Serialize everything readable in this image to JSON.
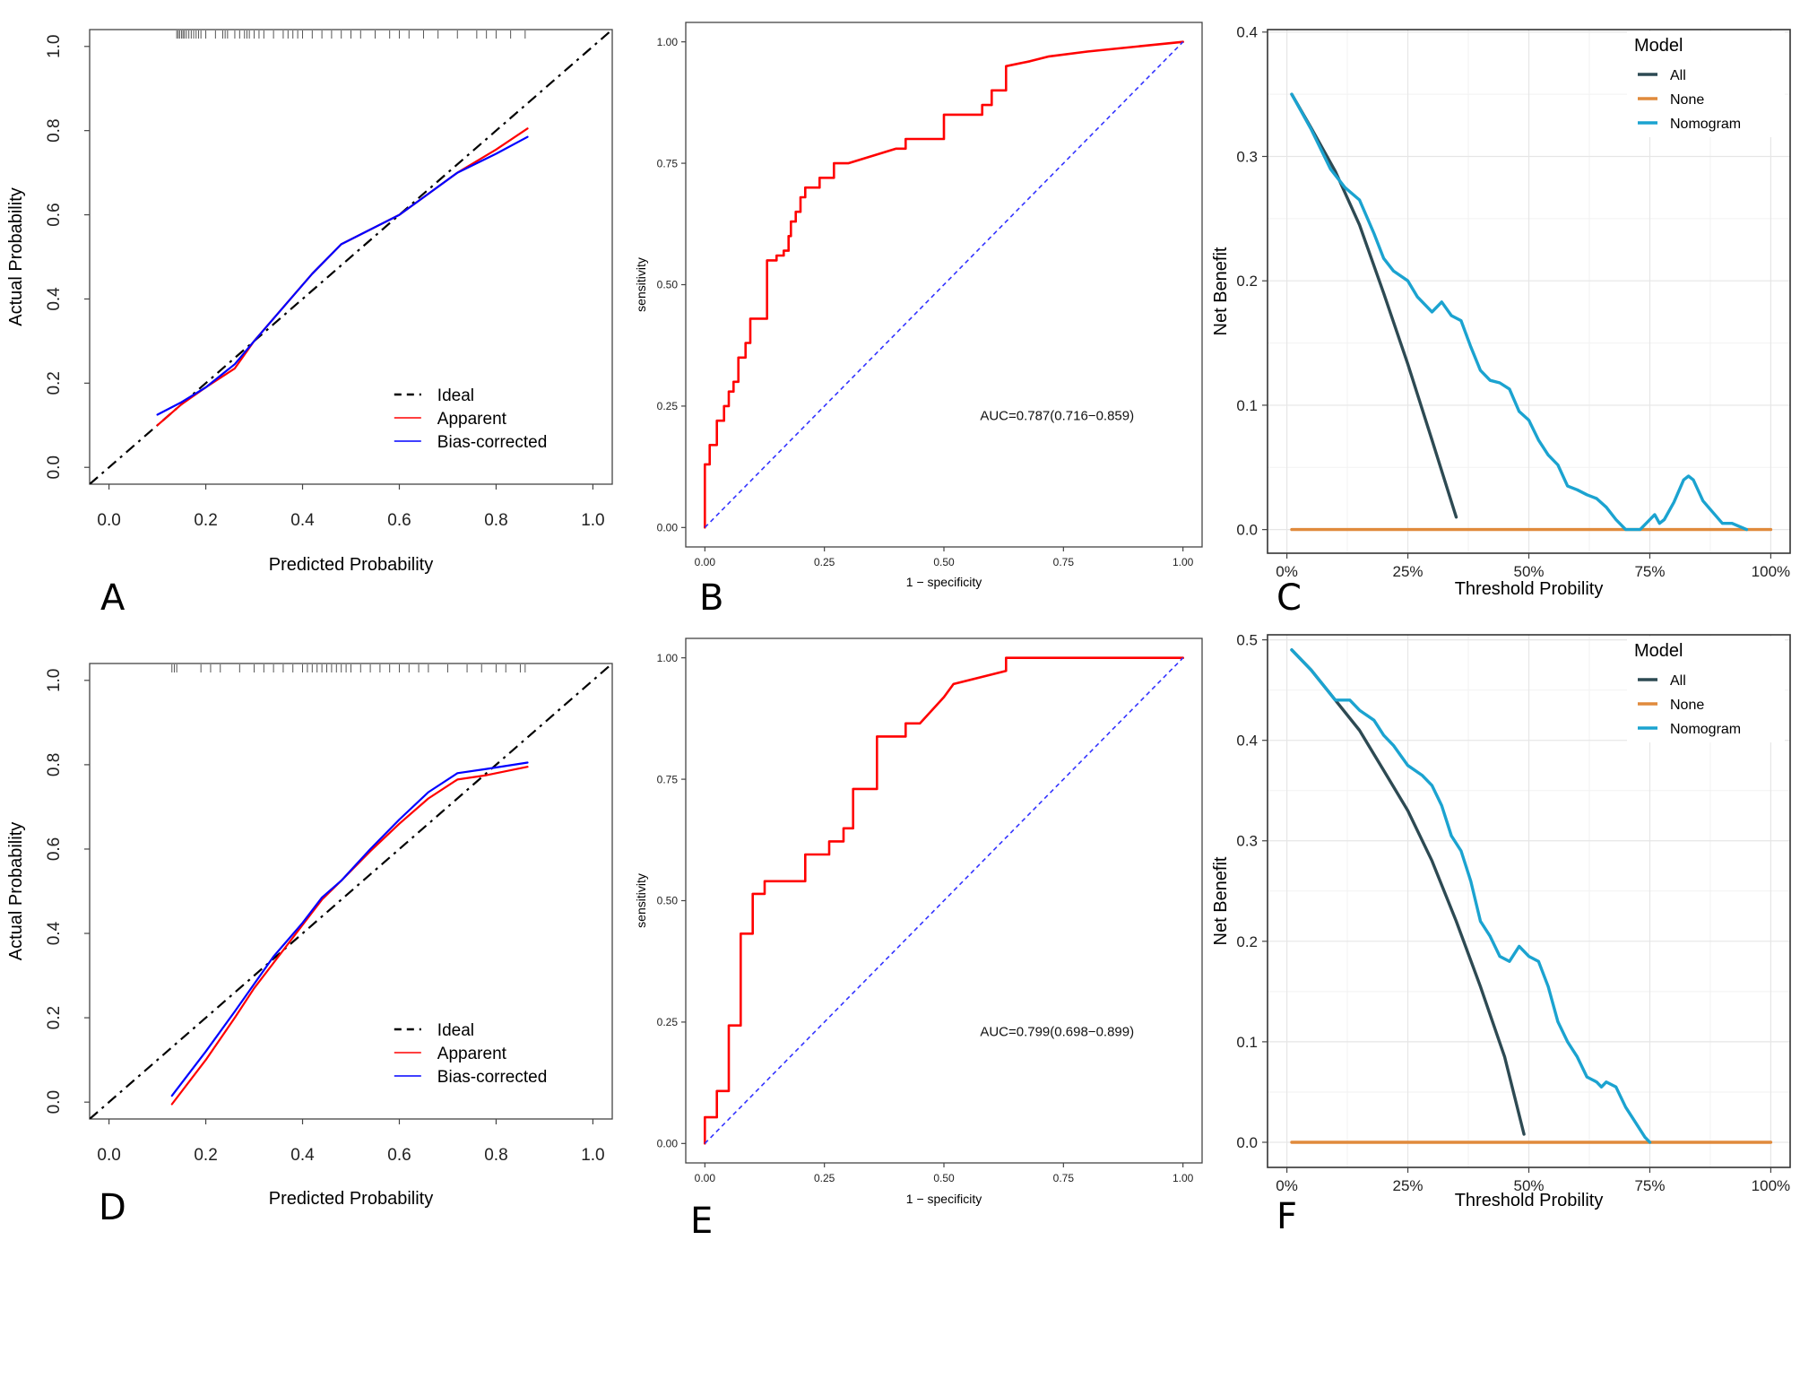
{
  "panels": [
    {
      "letter": "A",
      "chart_data": {
        "type": "line",
        "title": "",
        "xlabel": "Predicted Probability",
        "ylabel": "Actual Probability",
        "xlim": [
          -0.04,
          1.04
        ],
        "ylim": [
          -0.04,
          1.04
        ],
        "xticks": [
          "0.0",
          "0.2",
          "0.4",
          "0.6",
          "0.8",
          "1.0"
        ],
        "yticks": [
          "0.0",
          "0.2",
          "0.4",
          "0.6",
          "0.8",
          "1.0"
        ],
        "legend_position": "bottom-right",
        "series": [
          {
            "name": "Ideal",
            "color": "#000000",
            "dash": "dashed",
            "x": [
              -0.04,
              1.04
            ],
            "y": [
              -0.04,
              1.04
            ]
          },
          {
            "name": "Apparent",
            "color": "#ff0000",
            "x": [
              0.1,
              0.15,
              0.2,
              0.26,
              0.3,
              0.36,
              0.42,
              0.48,
              0.54,
              0.6,
              0.66,
              0.72,
              0.8,
              0.865
            ],
            "y": [
              0.1,
              0.15,
              0.19,
              0.235,
              0.3,
              0.38,
              0.46,
              0.53,
              0.565,
              0.6,
              0.65,
              0.7,
              0.755,
              0.805
            ]
          },
          {
            "name": "Bias-corrected",
            "color": "#0000ff",
            "x": [
              0.1,
              0.15,
              0.2,
              0.26,
              0.3,
              0.36,
              0.42,
              0.48,
              0.54,
              0.6,
              0.66,
              0.72,
              0.8,
              0.865
            ],
            "y": [
              0.125,
              0.155,
              0.19,
              0.245,
              0.3,
              0.38,
              0.46,
              0.53,
              0.565,
              0.6,
              0.65,
              0.7,
              0.745,
              0.785
            ]
          }
        ],
        "rug": {
          "y": 1.025,
          "x": [
            0.14,
            0.143,
            0.146,
            0.15,
            0.153,
            0.156,
            0.16,
            0.165,
            0.17,
            0.175,
            0.18,
            0.185,
            0.19,
            0.2,
            0.22,
            0.235,
            0.24,
            0.245,
            0.26,
            0.27,
            0.28,
            0.285,
            0.29,
            0.3,
            0.31,
            0.32,
            0.34,
            0.36,
            0.37,
            0.38,
            0.39,
            0.4,
            0.42,
            0.44,
            0.46,
            0.48,
            0.5,
            0.52,
            0.55,
            0.58,
            0.6,
            0.62,
            0.65,
            0.68,
            0.72,
            0.76,
            0.78,
            0.8,
            0.83,
            0.86
          ]
        }
      }
    },
    {
      "letter": "B",
      "chart_data": {
        "type": "line",
        "title": "",
        "xlabel": "1 − specificity",
        "ylabel": "sensitivity",
        "xlim": [
          -0.04,
          1.04
        ],
        "ylim": [
          -0.04,
          1.04
        ],
        "xticks": [
          "0.00",
          "0.25",
          "0.50",
          "0.75",
          "1.00"
        ],
        "yticks": [
          "0.00",
          "0.25",
          "0.50",
          "0.75",
          "1.00"
        ],
        "annotation": "AUC=0.787(0.716−0.859)",
        "series": [
          {
            "name": "",
            "color": "#ff0000",
            "x": [
              0.0,
              0.0,
              0.01,
              0.01,
              0.025,
              0.025,
              0.04,
              0.04,
              0.05,
              0.05,
              0.06,
              0.06,
              0.07,
              0.07,
              0.085,
              0.085,
              0.095,
              0.095,
              0.13,
              0.13,
              0.15,
              0.15,
              0.165,
              0.165,
              0.175,
              0.175,
              0.18,
              0.18,
              0.19,
              0.19,
              0.2,
              0.2,
              0.21,
              0.21,
              0.24,
              0.24,
              0.27,
              0.27,
              0.3,
              0.4,
              0.42,
              0.42,
              0.5,
              0.5,
              0.56,
              0.56,
              0.58,
              0.58,
              0.6,
              0.6,
              0.63,
              0.63,
              0.68,
              0.72,
              0.8,
              1.0
            ],
            "y": [
              0.0,
              0.13,
              0.13,
              0.17,
              0.17,
              0.22,
              0.22,
              0.25,
              0.25,
              0.28,
              0.28,
              0.3,
              0.3,
              0.35,
              0.35,
              0.38,
              0.38,
              0.43,
              0.43,
              0.55,
              0.55,
              0.56,
              0.56,
              0.57,
              0.57,
              0.6,
              0.6,
              0.63,
              0.63,
              0.65,
              0.65,
              0.68,
              0.68,
              0.7,
              0.7,
              0.72,
              0.72,
              0.75,
              0.75,
              0.78,
              0.78,
              0.8,
              0.8,
              0.85,
              0.85,
              0.85,
              0.85,
              0.87,
              0.87,
              0.9,
              0.9,
              0.95,
              0.96,
              0.97,
              0.98,
              1.0
            ]
          },
          {
            "name": "",
            "color": "#3333ff",
            "dash": "dotted",
            "x": [
              0.0,
              1.0
            ],
            "y": [
              0.0,
              1.0
            ]
          }
        ]
      }
    },
    {
      "letter": "C",
      "chart_data": {
        "type": "line",
        "title": "",
        "xlabel": "Threshold Probility",
        "ylabel": "Net Benefit",
        "xlim": [
          -0.04,
          1.04
        ],
        "ylim": [
          -0.019,
          0.402
        ],
        "xticks": [
          "0%",
          "25%",
          "50%",
          "75%",
          "100%"
        ],
        "yticks": [
          "0.0",
          "0.1",
          "0.2",
          "0.3",
          "0.4"
        ],
        "legend_title": "Model",
        "legend_position": "top-right",
        "series": [
          {
            "name": "All",
            "color": "#2d4a53",
            "x": [
              0.01,
              0.05,
              0.1,
              0.15,
              0.2,
              0.25,
              0.3,
              0.35
            ],
            "y": [
              0.35,
              0.323,
              0.288,
              0.245,
              0.19,
              0.133,
              0.072,
              0.01
            ]
          },
          {
            "name": "None",
            "color": "#e08a3c",
            "x": [
              0.01,
              1.0
            ],
            "y": [
              0.0,
              0.0
            ]
          },
          {
            "name": "Nomogram",
            "color": "#1ba3d0",
            "x": [
              0.01,
              0.05,
              0.09,
              0.12,
              0.15,
              0.18,
              0.2,
              0.22,
              0.25,
              0.27,
              0.3,
              0.32,
              0.34,
              0.36,
              0.38,
              0.4,
              0.42,
              0.44,
              0.46,
              0.48,
              0.5,
              0.52,
              0.54,
              0.56,
              0.58,
              0.6,
              0.62,
              0.64,
              0.66,
              0.68,
              0.7,
              0.72,
              0.73,
              0.75,
              0.76,
              0.77,
              0.78,
              0.8,
              0.82,
              0.83,
              0.84,
              0.86,
              0.88,
              0.9,
              0.92,
              0.95
            ],
            "y": [
              0.35,
              0.322,
              0.29,
              0.275,
              0.265,
              0.238,
              0.218,
              0.208,
              0.2,
              0.187,
              0.175,
              0.183,
              0.172,
              0.168,
              0.147,
              0.128,
              0.12,
              0.118,
              0.113,
              0.095,
              0.088,
              0.072,
              0.06,
              0.052,
              0.035,
              0.032,
              0.028,
              0.025,
              0.018,
              0.008,
              0.0,
              0.0,
              0.0,
              0.008,
              0.012,
              0.005,
              0.008,
              0.022,
              0.04,
              0.043,
              0.04,
              0.023,
              0.014,
              0.005,
              0.005,
              0.0
            ]
          }
        ]
      }
    },
    {
      "letter": "D",
      "chart_data": {
        "type": "line",
        "title": "",
        "xlabel": "Predicted Probability",
        "ylabel": "Actual Probability",
        "xlim": [
          -0.04,
          1.04
        ],
        "ylim": [
          -0.04,
          1.04
        ],
        "xticks": [
          "0.0",
          "0.2",
          "0.4",
          "0.6",
          "0.8",
          "1.0"
        ],
        "yticks": [
          "0.0",
          "0.2",
          "0.4",
          "0.6",
          "0.8",
          "1.0"
        ],
        "legend_position": "bottom-right",
        "series": [
          {
            "name": "Ideal",
            "color": "#000000",
            "dash": "dashed",
            "x": [
              -0.04,
              1.04
            ],
            "y": [
              -0.04,
              1.04
            ]
          },
          {
            "name": "Apparent",
            "color": "#ff0000",
            "x": [
              0.13,
              0.2,
              0.26,
              0.3,
              0.34,
              0.4,
              0.44,
              0.48,
              0.54,
              0.6,
              0.66,
              0.72,
              0.78,
              0.865
            ],
            "y": [
              -0.005,
              0.1,
              0.2,
              0.27,
              0.33,
              0.42,
              0.48,
              0.525,
              0.595,
              0.66,
              0.72,
              0.765,
              0.775,
              0.795
            ]
          },
          {
            "name": "Bias-corrected",
            "color": "#0000ff",
            "x": [
              0.13,
              0.2,
              0.26,
              0.3,
              0.34,
              0.4,
              0.44,
              0.48,
              0.54,
              0.6,
              0.66,
              0.72,
              0.78,
              0.865
            ],
            "y": [
              0.015,
              0.12,
              0.215,
              0.28,
              0.345,
              0.425,
              0.485,
              0.525,
              0.6,
              0.67,
              0.735,
              0.78,
              0.79,
              0.805
            ]
          }
        ],
        "rug": {
          "y": 1.025,
          "x": [
            0.13,
            0.135,
            0.14,
            0.19,
            0.21,
            0.23,
            0.27,
            0.3,
            0.32,
            0.34,
            0.36,
            0.38,
            0.4,
            0.41,
            0.42,
            0.43,
            0.44,
            0.45,
            0.46,
            0.47,
            0.48,
            0.49,
            0.5,
            0.52,
            0.54,
            0.56,
            0.58,
            0.6,
            0.62,
            0.64,
            0.66,
            0.7,
            0.74,
            0.77,
            0.8,
            0.82,
            0.85,
            0.86
          ]
        }
      }
    },
    {
      "letter": "E",
      "chart_data": {
        "type": "line",
        "title": "",
        "xlabel": "1 − specificity",
        "ylabel": "sensitivity",
        "xlim": [
          -0.04,
          1.04
        ],
        "ylim": [
          -0.04,
          1.04
        ],
        "xticks": [
          "0.00",
          "0.25",
          "0.50",
          "0.75",
          "1.00"
        ],
        "yticks": [
          "0.00",
          "0.25",
          "0.50",
          "0.75",
          "1.00"
        ],
        "annotation": "AUC=0.799(0.698−0.899)",
        "series": [
          {
            "name": "",
            "color": "#ff0000",
            "x": [
              0.0,
              0.0,
              0.025,
              0.025,
              0.05,
              0.05,
              0.075,
              0.075,
              0.1,
              0.1,
              0.125,
              0.125,
              0.21,
              0.21,
              0.26,
              0.26,
              0.29,
              0.29,
              0.31,
              0.31,
              0.36,
              0.36,
              0.42,
              0.42,
              0.45,
              0.5,
              0.5,
              0.52,
              0.52,
              0.63,
              0.63,
              1.0
            ],
            "y": [
              0.0,
              0.054,
              0.054,
              0.108,
              0.108,
              0.243,
              0.243,
              0.432,
              0.432,
              0.514,
              0.514,
              0.54,
              0.54,
              0.595,
              0.595,
              0.622,
              0.622,
              0.649,
              0.649,
              0.73,
              0.73,
              0.838,
              0.838,
              0.865,
              0.865,
              0.919,
              0.919,
              0.946,
              0.946,
              0.973,
              1.0,
              1.0
            ]
          },
          {
            "name": "",
            "color": "#3333ff",
            "dash": "dotted",
            "x": [
              0.0,
              1.0
            ],
            "y": [
              0.0,
              1.0
            ]
          }
        ]
      }
    },
    {
      "letter": "F",
      "chart_data": {
        "type": "line",
        "title": "",
        "xlabel": "Threshold Probility",
        "ylabel": "Net Benefit",
        "xlim": [
          -0.04,
          1.04
        ],
        "ylim": [
          -0.025,
          0.505
        ],
        "xticks": [
          "0%",
          "25%",
          "50%",
          "75%",
          "100%"
        ],
        "yticks": [
          "0.0",
          "0.1",
          "0.2",
          "0.3",
          "0.4",
          "0.5"
        ],
        "legend_title": "Model",
        "legend_position": "top-right",
        "series": [
          {
            "name": "All",
            "color": "#2d4a53",
            "x": [
              0.01,
              0.05,
              0.1,
              0.15,
              0.2,
              0.25,
              0.3,
              0.35,
              0.4,
              0.45,
              0.49
            ],
            "y": [
              0.49,
              0.47,
              0.44,
              0.41,
              0.37,
              0.33,
              0.28,
              0.22,
              0.155,
              0.085,
              0.008
            ]
          },
          {
            "name": "None",
            "color": "#e08a3c",
            "x": [
              0.01,
              1.0
            ],
            "y": [
              0.0,
              0.0
            ]
          },
          {
            "name": "Nomogram",
            "color": "#1ba3d0",
            "x": [
              0.01,
              0.05,
              0.1,
              0.13,
              0.15,
              0.18,
              0.2,
              0.22,
              0.25,
              0.28,
              0.3,
              0.32,
              0.34,
              0.36,
              0.38,
              0.4,
              0.42,
              0.44,
              0.46,
              0.48,
              0.5,
              0.52,
              0.54,
              0.56,
              0.58,
              0.6,
              0.62,
              0.64,
              0.65,
              0.66,
              0.68,
              0.7,
              0.72,
              0.74,
              0.75
            ],
            "y": [
              0.49,
              0.47,
              0.44,
              0.44,
              0.43,
              0.42,
              0.405,
              0.395,
              0.375,
              0.365,
              0.355,
              0.335,
              0.305,
              0.29,
              0.26,
              0.22,
              0.205,
              0.185,
              0.18,
              0.195,
              0.185,
              0.18,
              0.155,
              0.12,
              0.1,
              0.085,
              0.065,
              0.06,
              0.055,
              0.06,
              0.055,
              0.035,
              0.02,
              0.005,
              0.0
            ]
          }
        ]
      }
    }
  ]
}
